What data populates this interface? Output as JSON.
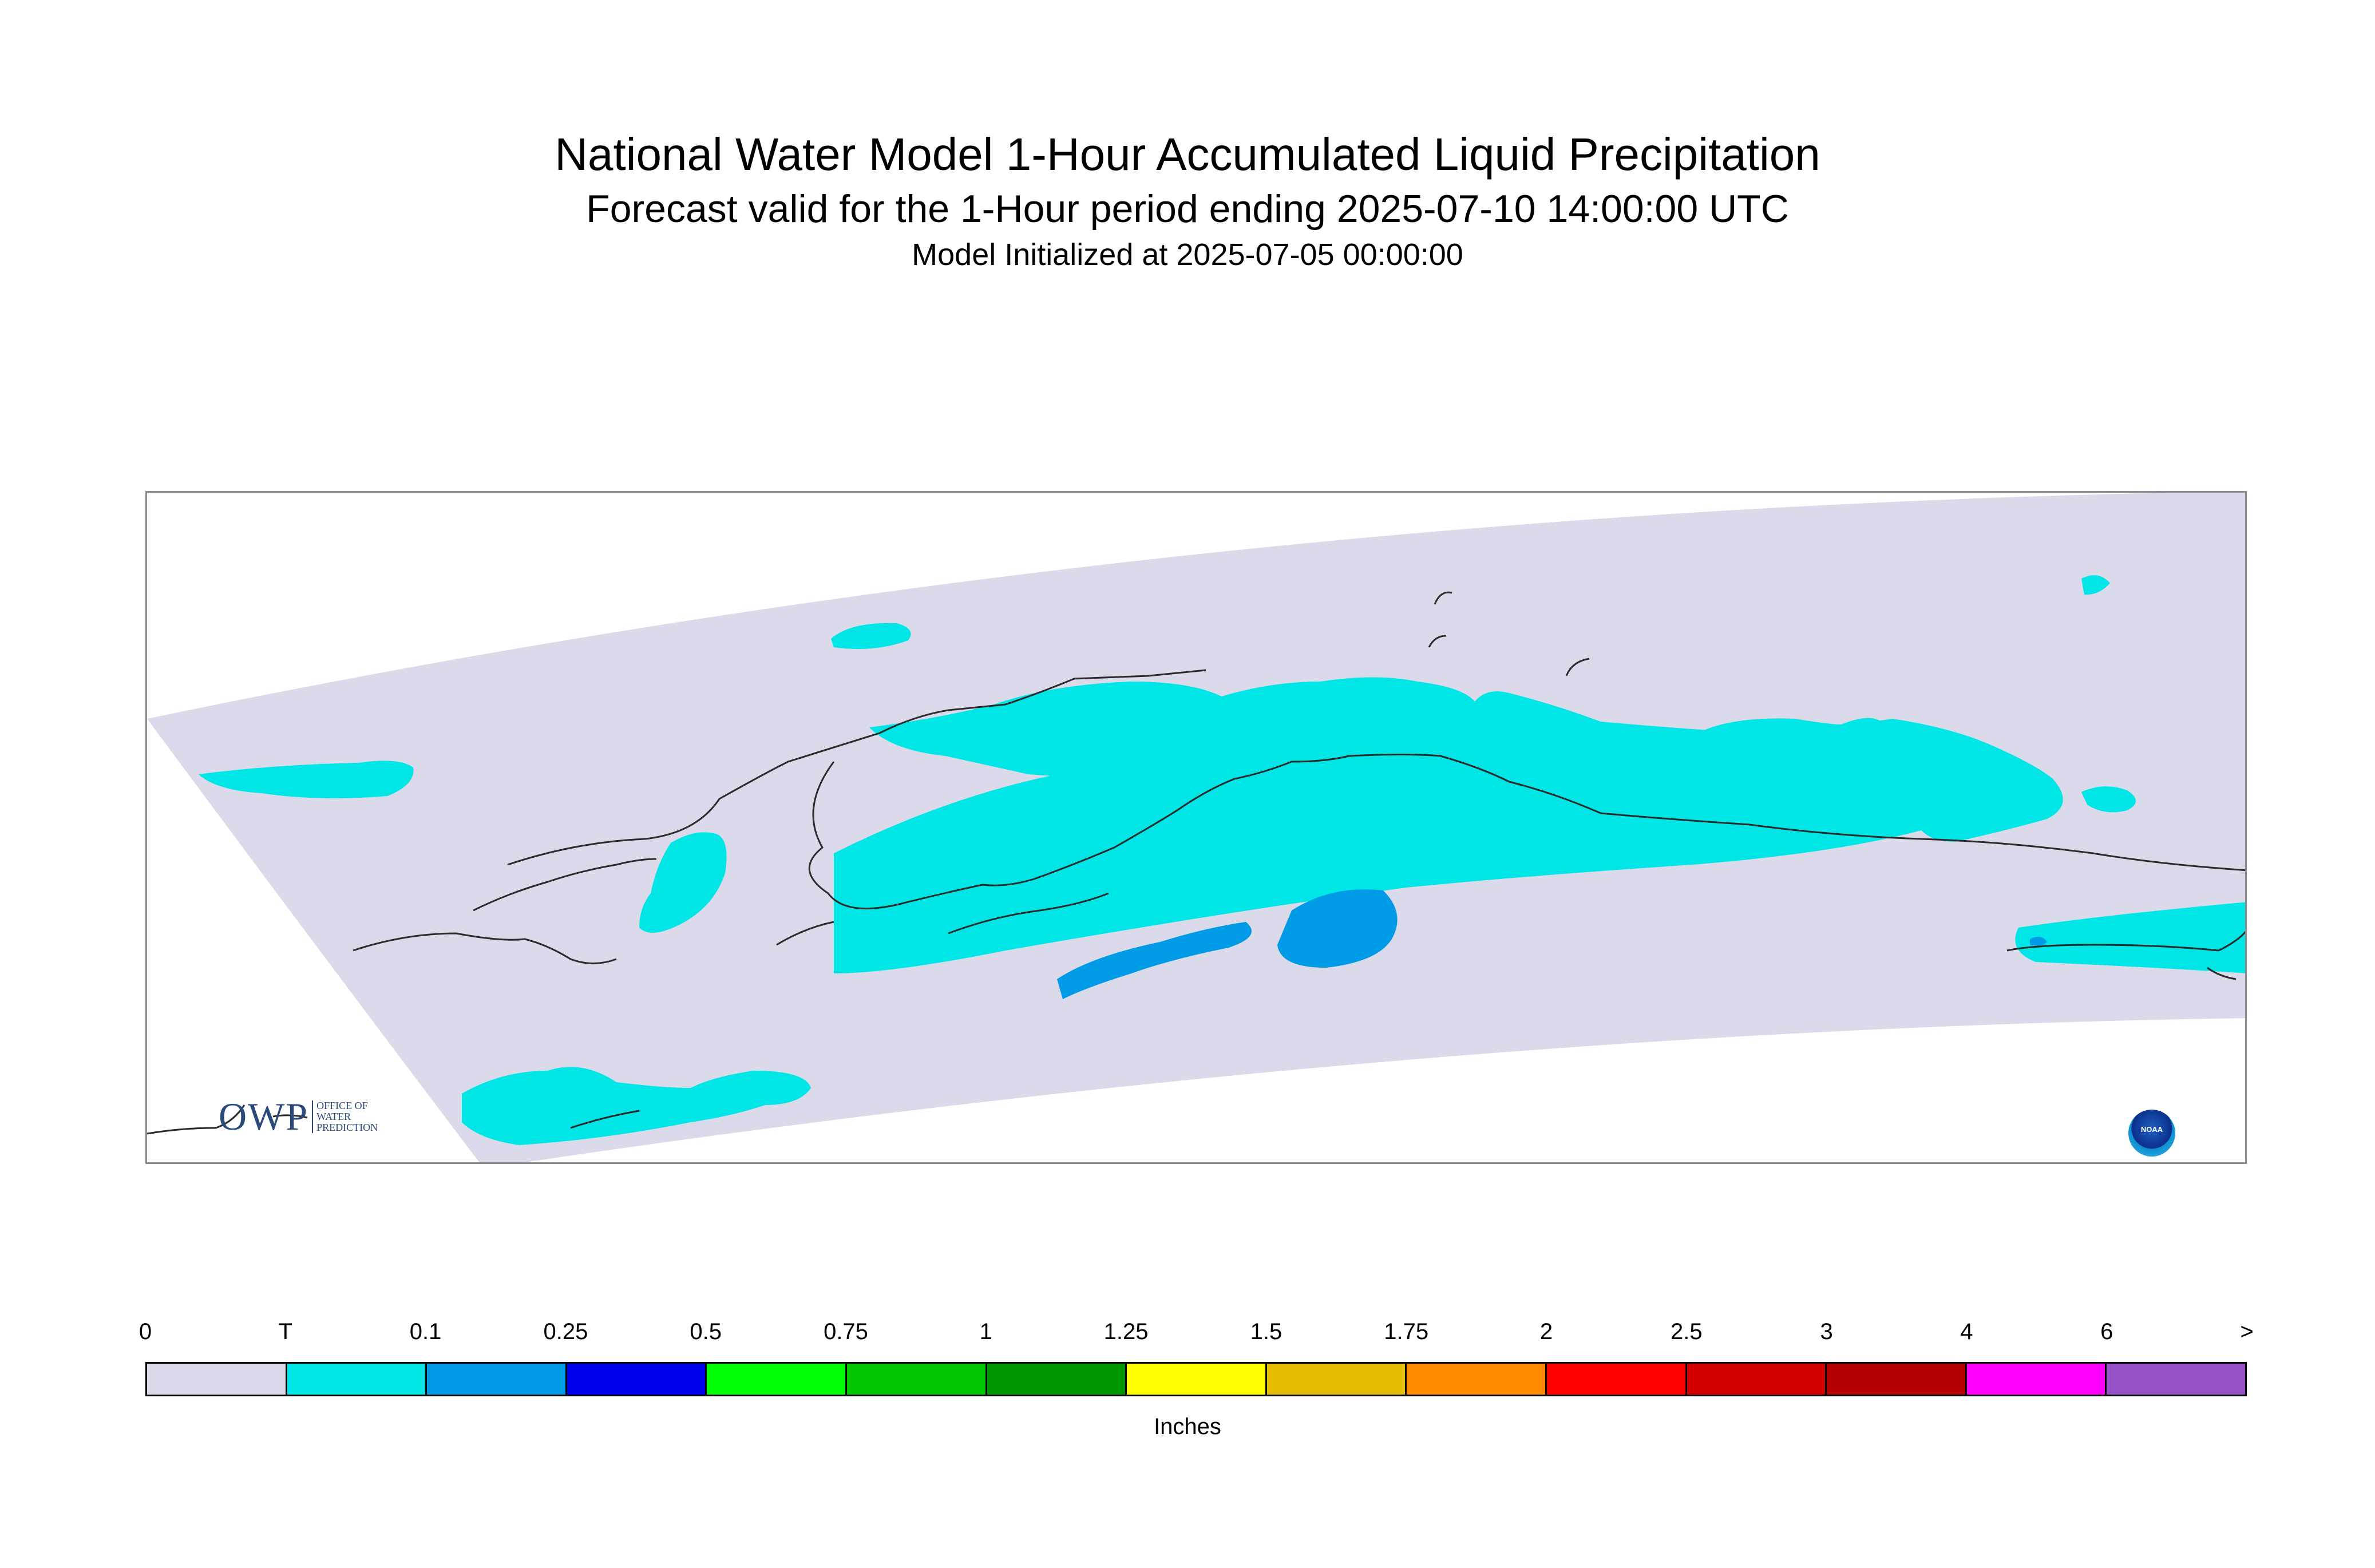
{
  "title": "National Water Model 1-Hour Accumulated Liquid Precipitation",
  "subtitle": "Forecast valid for the 1-Hour period ending 2025-07-10 14:00:00 UTC",
  "init_line": "Model Initialized at 2025-07-05 00:00:00",
  "logos": {
    "owp": {
      "main": "OWP",
      "line1": "OFFICE OF",
      "line2": "WATER",
      "line3": "PREDICTION"
    },
    "noaa": {
      "text": "NOAA"
    }
  },
  "map": {
    "region": "Alaska",
    "colors": {
      "domain": "#dadaea",
      "trace": "#00e6e6",
      "light": "#009be6",
      "coastline": "#2b2b2b",
      "frame": "#8c8c8c"
    }
  },
  "legend": {
    "units": "Inches",
    "ticks": [
      "0",
      "T",
      "0.1",
      "0.25",
      "0.5",
      "0.75",
      "1",
      "1.25",
      "1.5",
      "1.75",
      "2",
      "2.5",
      "3",
      "4",
      "6",
      ">"
    ],
    "colors": [
      "#dadaea",
      "#00e6e6",
      "#009be6",
      "#0000f0",
      "#00ff00",
      "#00c800",
      "#009600",
      "#ffff00",
      "#e6be00",
      "#ff8c00",
      "#ff0000",
      "#d20000",
      "#b40000",
      "#ff00ff",
      "#9650c8"
    ]
  }
}
